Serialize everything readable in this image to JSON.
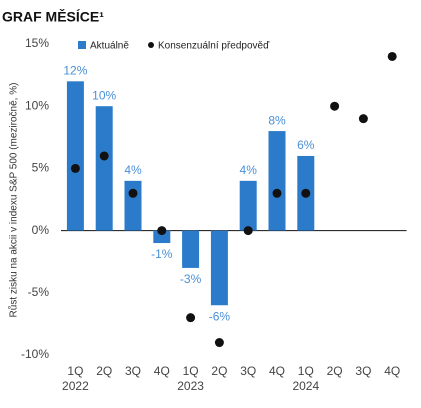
{
  "chart_data": {
    "type": "bar",
    "title": "GRAF MĚSÍCE¹",
    "y_label": "Růst zisku na akcii v indexu S&P 500 (meziročně, %)",
    "categories": [
      "1Q",
      "2Q",
      "3Q",
      "4Q",
      "1Q",
      "2Q",
      "3Q",
      "4Q",
      "1Q",
      "2Q",
      "3Q",
      "4Q"
    ],
    "years": [
      "2022",
      null,
      null,
      null,
      "2023",
      null,
      null,
      null,
      "2024",
      null,
      null,
      null
    ],
    "series": [
      {
        "name": "Aktuálně",
        "color": "#2b7bca",
        "mark": "bar",
        "values": [
          12,
          10,
          4,
          -1,
          -3,
          -6,
          4,
          8,
          6,
          null,
          null,
          null
        ],
        "value_labels": [
          "12%",
          "10%",
          "4%",
          "-1%",
          "-3%",
          "-6%",
          "4%",
          "8%",
          "6%",
          null,
          null,
          null
        ]
      },
      {
        "name": "Konsenzuální předpověď",
        "color": "#111111",
        "mark": "dot",
        "values": [
          5,
          6,
          3,
          0,
          -7,
          -9,
          0,
          3,
          3,
          10,
          9,
          14
        ]
      }
    ],
    "ylim": [
      -10,
      15
    ],
    "yticks": [
      {
        "value": 15,
        "label": "15%"
      },
      {
        "value": 10,
        "label": "10%"
      },
      {
        "value": 5,
        "label": "5%"
      },
      {
        "value": 0,
        "label": "0%"
      },
      {
        "value": -5,
        "label": "-5%"
      },
      {
        "value": -10,
        "label": "-10%"
      }
    ]
  }
}
